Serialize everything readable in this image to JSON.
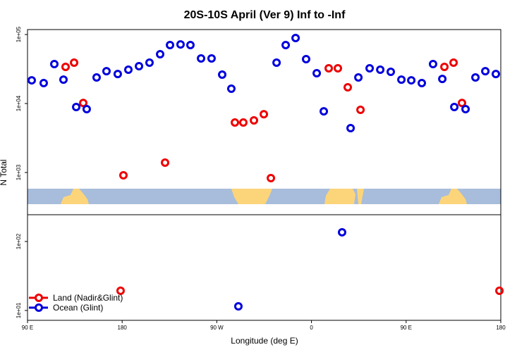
{
  "chart_data": {
    "type": "scatter",
    "title": "20S-10S April (Ver 9)   Inf to -Inf",
    "x_label": "Longitude (deg E)",
    "y_label": "N Total",
    "log_y": true,
    "legend": "lower left",
    "xlim": [
      90,
      540
    ],
    "xticks": [
      {
        "value": 90,
        "label": "90 E"
      },
      180,
      {
        "value": 270,
        "label": "90 W"
      },
      {
        "value": 360,
        "label": "0"
      },
      {
        "value": 450,
        "label": "90 E"
      },
      {
        "value": 540,
        "label": "180"
      }
    ],
    "ylim": [
      7.2,
      118000
    ],
    "yticks": [
      {
        "value": 10,
        "label": "1e+01"
      },
      {
        "value": 100,
        "label": "1e+02"
      },
      {
        "value": 1000,
        "label": "1e+03"
      },
      {
        "value": 10000,
        "label": "1e+04"
      },
      {
        "value": 100000,
        "label": "1e+05"
      }
    ],
    "series": [
      {
        "name": "Land (Nadir&Glint)",
        "color": "#ee0000",
        "x": [
          126.2,
          134.3,
          143.0,
          181.2,
          178.5,
          220.8,
          287.2,
          295.2,
          305.3,
          314.7,
          321.4,
          376.4,
          385.1,
          394.5,
          406.6,
          486.4,
          495.1,
          503.1,
          538.7
        ],
        "values": [
          34000,
          39100,
          10200,
          910,
          19.3,
          1390,
          5300,
          5300,
          5700,
          7000,
          830,
          32400,
          32400,
          17200,
          8100,
          34000,
          39100,
          10200,
          19.3
        ]
      },
      {
        "name": "Ocean (Glint)",
        "color": "#0000dd",
        "x": [
          94.0,
          105.4,
          115.5,
          124.2,
          136.3,
          146.3,
          155.7,
          165.1,
          175.8,
          185.9,
          196.0,
          206.0,
          216.1,
          225.5,
          235.5,
          244.9,
          255.0,
          265.0,
          275.1,
          283.8,
          290.5,
          326.8,
          335.5,
          344.9,
          354.9,
          365.0,
          371.7,
          389.1,
          397.2,
          404.6,
          415.3,
          425.4,
          435.4,
          445.5,
          454.9,
          464.9,
          475.6,
          484.4,
          495.8,
          506.5,
          515.9,
          525.3,
          535.3
        ],
        "values": [
          21700,
          19800,
          37300,
          22200,
          8900,
          8300,
          23900,
          29400,
          26800,
          30900,
          34800,
          39100,
          51800,
          70300,
          71900,
          70300,
          45000,
          45000,
          26200,
          16400,
          11.5,
          39100,
          70300,
          88900,
          44000,
          27500,
          7700,
          136,
          4400,
          23900,
          32400,
          30900,
          28800,
          22200,
          21700,
          19800,
          37300,
          22700,
          8900,
          8300,
          23900,
          29400,
          26800
        ]
      }
    ]
  }
}
